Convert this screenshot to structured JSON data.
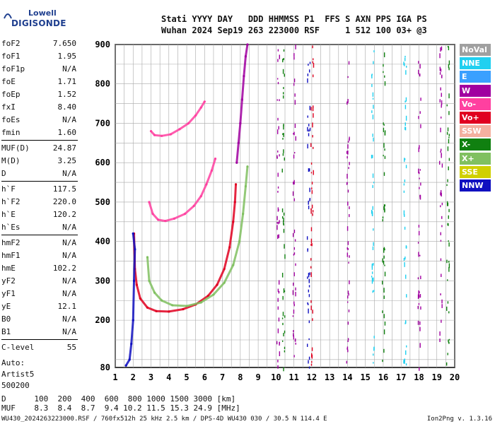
{
  "logo": {
    "line1": "Lowell",
    "line2": "DIGISONDE"
  },
  "header": {
    "line1": "Stati YYYY DAY   DDD HHMMSS P1  FFS S AXN PPS IGA PS",
    "line2": "Wuhan 2024 Sep19 263 223000 RSF     1 512 100 03+ @3"
  },
  "params_group1": [
    {
      "k": "foF2",
      "v": "7.650"
    },
    {
      "k": "foF1",
      "v": "1.95"
    },
    {
      "k": "foF1p",
      "v": "N/A"
    },
    {
      "k": "foE",
      "v": "1.71"
    },
    {
      "k": "foEp",
      "v": "1.52"
    },
    {
      "k": "fxI",
      "v": "8.40"
    },
    {
      "k": "foEs",
      "v": "N/A"
    },
    {
      "k": "fmin",
      "v": "1.60"
    }
  ],
  "params_group2": [
    {
      "k": "MUF(D)",
      "v": "24.87"
    },
    {
      "k": "M(D)",
      "v": "3.25"
    },
    {
      "k": "D",
      "v": "N/A"
    }
  ],
  "params_group3": [
    {
      "k": "h`F",
      "v": "117.5"
    },
    {
      "k": "h`F2",
      "v": "220.0"
    },
    {
      "k": "h`E",
      "v": "120.2"
    },
    {
      "k": "h`Es",
      "v": "N/A"
    }
  ],
  "params_group4": [
    {
      "k": "hmF2",
      "v": "N/A"
    },
    {
      "k": "hmF1",
      "v": "N/A"
    },
    {
      "k": "hmE",
      "v": "102.2"
    },
    {
      "k": "yF2",
      "v": "N/A"
    },
    {
      "k": "yF1",
      "v": "N/A"
    },
    {
      "k": "yE",
      "v": "12.1"
    },
    {
      "k": "B0",
      "v": "N/A"
    },
    {
      "k": "B1",
      "v": "N/A"
    }
  ],
  "params_group5": [
    {
      "k": "C-level",
      "v": "55"
    }
  ],
  "autoscale": {
    "l1": "Auto:",
    "l2": "Artist5",
    "l3": "500200"
  },
  "legend": [
    {
      "label": "NoVal",
      "bg": "#a0a0a0",
      "fg": "#ffffff"
    },
    {
      "label": "NNE",
      "bg": "#20d0f0",
      "fg": "#ffffff"
    },
    {
      "label": "E",
      "bg": "#3aa0ff",
      "fg": "#ffffff"
    },
    {
      "label": "W",
      "bg": "#a000a0",
      "fg": "#ffffff"
    },
    {
      "label": "Vo-",
      "bg": "#ff40a0",
      "fg": "#ffffff"
    },
    {
      "label": "Vo+",
      "bg": "#e00020",
      "fg": "#ffffff"
    },
    {
      "label": "SSW",
      "bg": "#f4b0a0",
      "fg": "#ffffff"
    },
    {
      "label": "X-",
      "bg": "#108010",
      "fg": "#ffffff"
    },
    {
      "label": "X+",
      "bg": "#80c060",
      "fg": "#ffffff"
    },
    {
      "label": "SSE",
      "bg": "#d0d000",
      "fg": "#ffffff"
    },
    {
      "label": "NNW",
      "bg": "#1010c0",
      "fg": "#ffffff"
    }
  ],
  "bottom": {
    "line1": "D      100  200  400  600  800 1000 1500 3000 [km]",
    "line2": "MUF    8.3  8.4  8.7  9.4 10.2 11.5 15.3 24.9 [MHz]"
  },
  "footer": {
    "left": "WU430_2024263223000.RSF / 760fx512h 25 kHz 2.5 km / DPS-4D WU430 030 / 30.5 N 114.4 E",
    "right": "Ion2Png v. 1.3.16"
  },
  "chart_data": {
    "type": "scatter",
    "title": "",
    "xlabel": "",
    "ylabel": "",
    "xlim": [
      1,
      20
    ],
    "ylim": [
      80,
      900
    ],
    "x_ticks": [
      1,
      2,
      3,
      4,
      5,
      6,
      7,
      8,
      9,
      10,
      11,
      12,
      13,
      14,
      15,
      16,
      17,
      18,
      19,
      20
    ],
    "y_ticks": [
      200,
      300,
      400,
      500,
      600,
      700,
      800,
      900
    ],
    "y_tick_bottom": 80,
    "grid": true,
    "series": [
      {
        "name": "Vo+",
        "color": "#e00020",
        "points": [
          [
            2.05,
            420
          ],
          [
            2.1,
            330
          ],
          [
            2.2,
            290
          ],
          [
            2.4,
            255
          ],
          [
            2.8,
            232
          ],
          [
            3.3,
            223
          ],
          [
            4.0,
            222
          ],
          [
            4.8,
            228
          ],
          [
            5.5,
            240
          ],
          [
            6.2,
            262
          ],
          [
            6.7,
            290
          ],
          [
            7.1,
            330
          ],
          [
            7.4,
            385
          ],
          [
            7.6,
            450
          ],
          [
            7.7,
            500
          ],
          [
            7.75,
            545
          ]
        ]
      },
      {
        "name": "X+",
        "color": "#80c060",
        "points": [
          [
            2.8,
            360
          ],
          [
            2.9,
            300
          ],
          [
            3.2,
            270
          ],
          [
            3.6,
            250
          ],
          [
            4.2,
            238
          ],
          [
            5.0,
            236
          ],
          [
            5.8,
            245
          ],
          [
            6.5,
            265
          ],
          [
            7.1,
            295
          ],
          [
            7.6,
            340
          ],
          [
            7.95,
            400
          ],
          [
            8.15,
            470
          ],
          [
            8.3,
            540
          ],
          [
            8.4,
            590
          ]
        ]
      },
      {
        "name": "Vo-",
        "color": "#ff40a0",
        "points": [
          [
            2.9,
            500
          ],
          [
            3.1,
            470
          ],
          [
            3.4,
            455
          ],
          [
            3.8,
            452
          ],
          [
            4.3,
            458
          ],
          [
            4.9,
            470
          ],
          [
            5.4,
            490
          ],
          [
            5.8,
            515
          ],
          [
            6.1,
            545
          ],
          [
            6.4,
            580
          ],
          [
            6.6,
            610
          ]
        ]
      },
      {
        "name": "Vo-",
        "color": "#ff40a0",
        "points": [
          [
            3.0,
            680
          ],
          [
            3.2,
            670
          ],
          [
            3.6,
            668
          ],
          [
            4.1,
            672
          ],
          [
            4.6,
            685
          ],
          [
            5.1,
            700
          ],
          [
            5.5,
            720
          ],
          [
            5.8,
            740
          ],
          [
            6.0,
            755
          ]
        ]
      },
      {
        "name": "NNW",
        "color": "#1010c0",
        "points": [
          [
            1.6,
            85
          ],
          [
            1.8,
            100
          ],
          [
            1.9,
            140
          ],
          [
            2.0,
            200
          ],
          [
            2.05,
            300
          ],
          [
            2.1,
            380
          ],
          [
            2.0,
            420
          ]
        ]
      },
      {
        "name": "W",
        "color": "#a000a0",
        "points": [
          [
            7.8,
            600
          ],
          [
            7.9,
            650
          ],
          [
            8.0,
            700
          ],
          [
            8.1,
            760
          ],
          [
            8.2,
            820
          ],
          [
            8.3,
            870
          ],
          [
            8.4,
            900
          ]
        ]
      }
    ],
    "vertical_streaks": [
      {
        "x": 10.1,
        "color": "#a000a0"
      },
      {
        "x": 10.4,
        "color": "#108010"
      },
      {
        "x": 11.0,
        "color": "#a000a0"
      },
      {
        "x": 11.8,
        "color": "#1010c0"
      },
      {
        "x": 12.0,
        "color": "#e00020"
      },
      {
        "x": 14.0,
        "color": "#a000a0"
      },
      {
        "x": 15.4,
        "color": "#20d0f0"
      },
      {
        "x": 16.0,
        "color": "#108010"
      },
      {
        "x": 17.2,
        "color": "#20d0f0"
      },
      {
        "x": 18.0,
        "color": "#a000a0"
      },
      {
        "x": 19.2,
        "color": "#a000a0"
      },
      {
        "x": 19.6,
        "color": "#108010"
      }
    ]
  }
}
